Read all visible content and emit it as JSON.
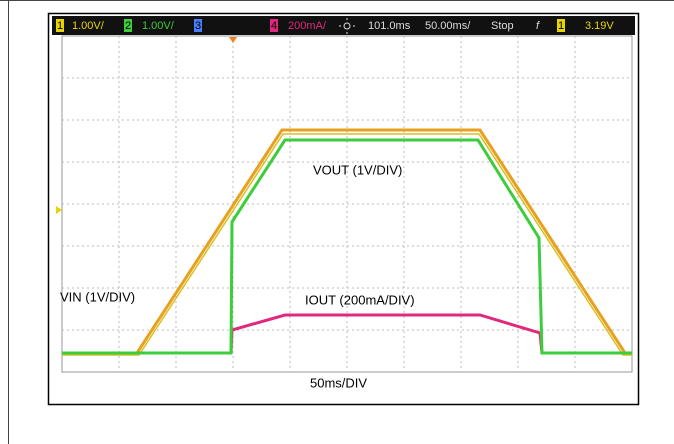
{
  "status_bar": {
    "ch1": "1",
    "ch1_scale": "1.00V/",
    "ch2": "2",
    "ch2_scale": "1.00V/",
    "ch3": "3",
    "ch4": "4",
    "ch4_scale": "200mA/",
    "delay": "101.0ms",
    "timebase": "50.00ms/",
    "state": "Stop",
    "trigger_edge": "f",
    "trigger_ch": "1",
    "trigger_level": "3.19V"
  },
  "annotations": {
    "vout": "VOUT (1V/DIV)",
    "vin": "VIN (1V/DIV)",
    "iout": "IOUT (200mA/DIV)",
    "time": "50ms/DIV"
  }
}
